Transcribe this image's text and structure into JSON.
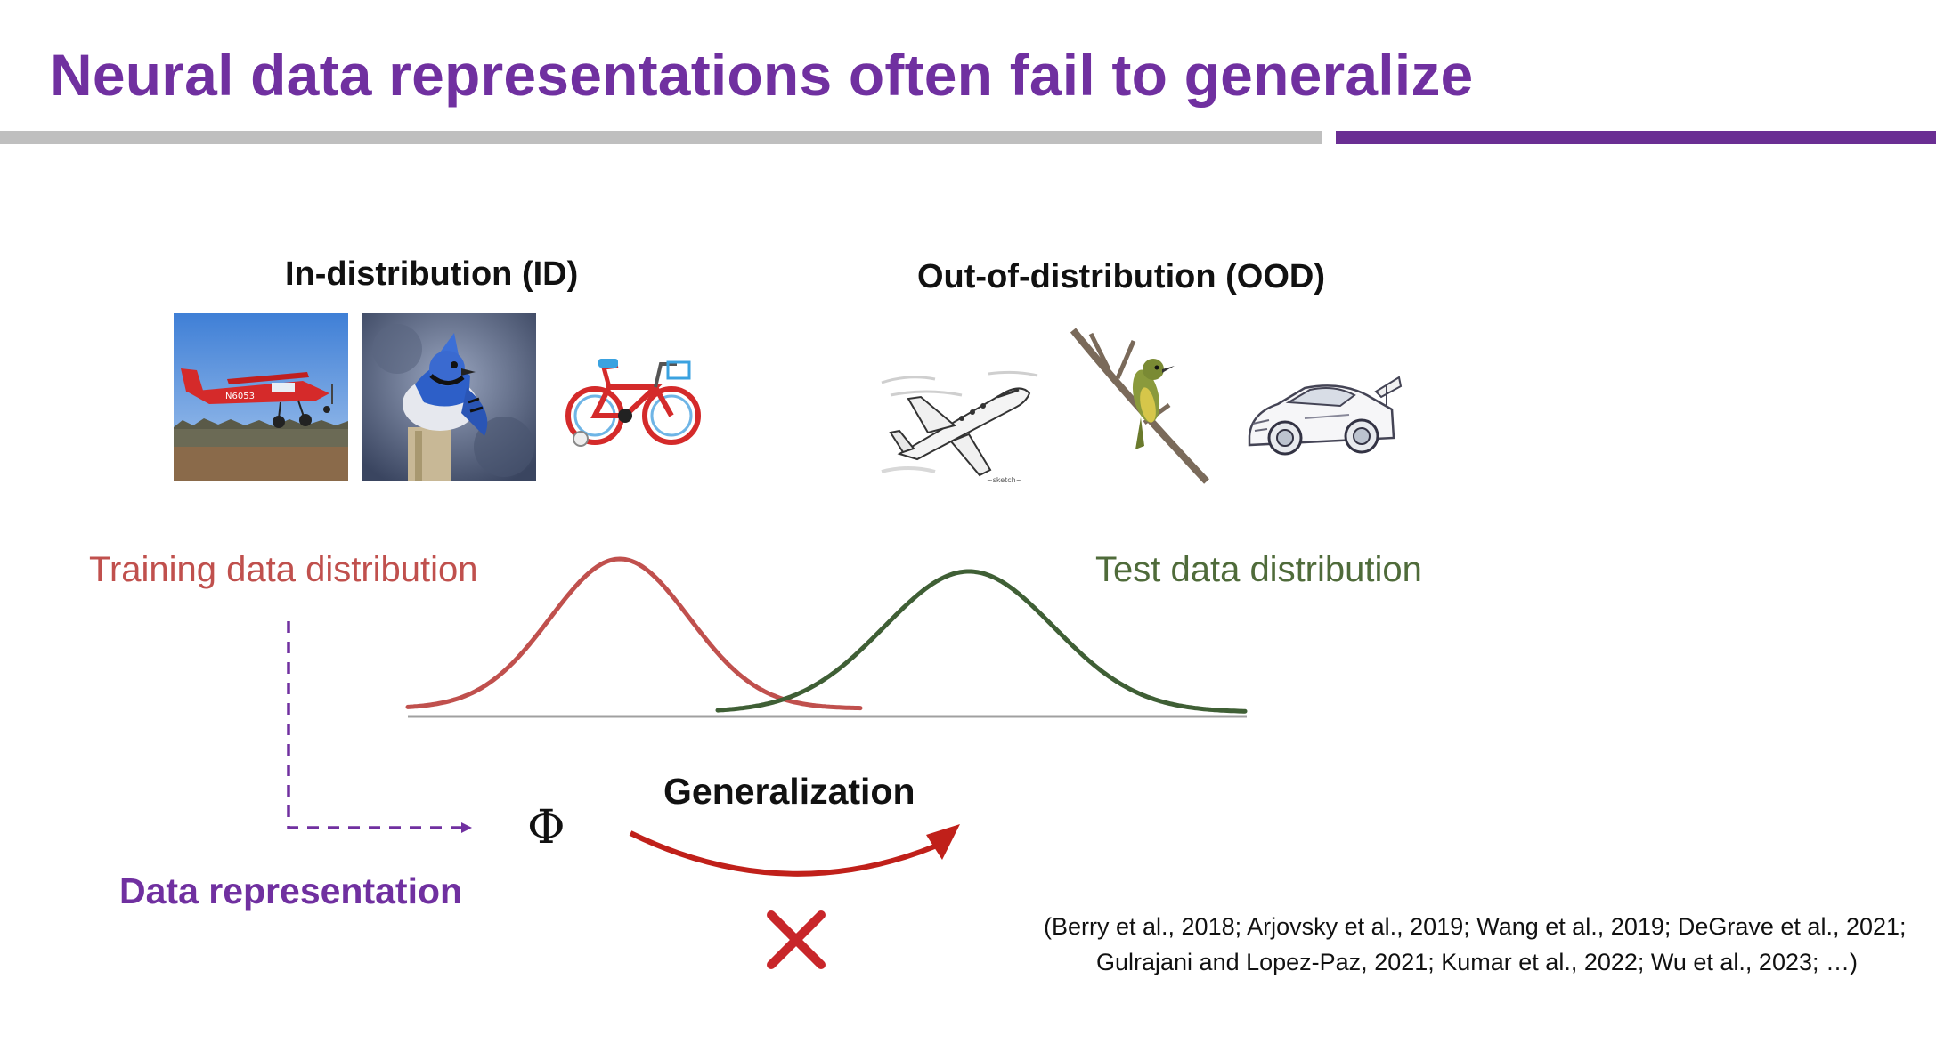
{
  "slide": {
    "title": "Neural data representations often fail to generalize",
    "accent_color": "#7030a0"
  },
  "id_section": {
    "label": "In-distribution (ID)",
    "images": [
      "airplane-photo",
      "blue-jay-photo",
      "bicycle-photo"
    ]
  },
  "ood_section": {
    "label": "Out-of-distribution (OOD)",
    "images": [
      "jet-sketch",
      "bird-on-branch-sketch",
      "race-car-sketch"
    ]
  },
  "distributions": {
    "train": {
      "label": "Training data distribution",
      "color": "#c0504d"
    },
    "test": {
      "label": "Test data distribution",
      "color": "#3f5f35"
    }
  },
  "representation": {
    "symbol": "Φ",
    "label": "Data representation"
  },
  "generalization": {
    "label": "Generalization",
    "arrow_color": "#c0201a",
    "fail_mark": "cross-mark"
  },
  "citation": {
    "line1": "(Berry et al., 2018; Arjovsky et al., 2019; Wang et al., 2019; DeGrave et al., 2021;",
    "line2": "Gulrajani and Lopez-Paz, 2021; Kumar et al., 2022; Wu et al., 2023; …)"
  }
}
